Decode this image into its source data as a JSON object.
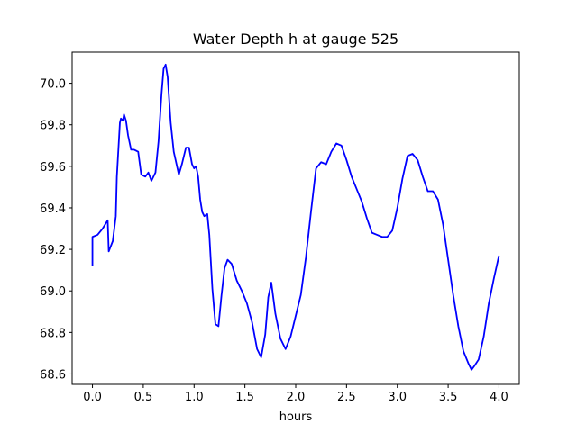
{
  "chart_data": {
    "type": "line",
    "title": "Water Depth h at gauge 525",
    "xlabel": "hours",
    "ylabel": "",
    "xlim": [
      -0.2,
      4.2
    ],
    "ylim": [
      68.55,
      70.15
    ],
    "xticks": [
      0.0,
      0.5,
      1.0,
      1.5,
      2.0,
      2.5,
      3.0,
      3.5,
      4.0
    ],
    "xtick_labels": [
      "0.0",
      "0.5",
      "1.0",
      "1.5",
      "2.0",
      "2.5",
      "3.0",
      "3.5",
      "4.0"
    ],
    "yticks": [
      68.6,
      68.8,
      69.0,
      69.2,
      69.4,
      69.6,
      69.8,
      70.0
    ],
    "ytick_labels": [
      "68.6",
      "68.8",
      "69.0",
      "69.2",
      "69.4",
      "69.6",
      "69.8",
      "70.0"
    ],
    "grid": false,
    "series": [
      {
        "color": "#0000ff",
        "x": [
          0.0,
          0.0,
          0.05,
          0.1,
          0.15,
          0.16,
          0.2,
          0.23,
          0.24,
          0.27,
          0.28,
          0.3,
          0.31,
          0.33,
          0.35,
          0.38,
          0.41,
          0.45,
          0.48,
          0.52,
          0.55,
          0.58,
          0.62,
          0.65,
          0.68,
          0.7,
          0.72,
          0.74,
          0.77,
          0.8,
          0.85,
          0.88,
          0.92,
          0.95,
          0.98,
          1.0,
          1.02,
          1.04,
          1.06,
          1.08,
          1.1,
          1.13,
          1.15,
          1.18,
          1.21,
          1.24,
          1.27,
          1.3,
          1.33,
          1.37,
          1.42,
          1.47,
          1.52,
          1.57,
          1.62,
          1.66,
          1.7,
          1.73,
          1.76,
          1.8,
          1.85,
          1.9,
          1.95,
          2.0,
          2.05,
          2.1,
          2.15,
          2.2,
          2.25,
          2.3,
          2.35,
          2.4,
          2.45,
          2.5,
          2.55,
          2.6,
          2.65,
          2.7,
          2.75,
          2.8,
          2.85,
          2.9,
          2.95,
          3.0,
          3.05,
          3.1,
          3.15,
          3.2,
          3.25,
          3.3,
          3.35,
          3.4,
          3.45,
          3.5,
          3.55,
          3.6,
          3.65,
          3.7,
          3.73,
          3.76,
          3.8,
          3.85,
          3.9,
          3.95,
          4.0
        ],
        "y": [
          69.12,
          69.26,
          69.27,
          69.3,
          69.34,
          69.19,
          69.24,
          69.36,
          69.55,
          69.81,
          69.83,
          69.82,
          69.85,
          69.82,
          69.75,
          69.68,
          69.68,
          69.67,
          69.56,
          69.55,
          69.57,
          69.53,
          69.57,
          69.72,
          69.95,
          70.07,
          70.09,
          70.03,
          69.81,
          69.67,
          69.56,
          69.61,
          69.69,
          69.69,
          69.61,
          69.59,
          69.6,
          69.55,
          69.44,
          69.38,
          69.36,
          69.37,
          69.27,
          69.01,
          68.84,
          68.83,
          68.98,
          69.11,
          69.15,
          69.13,
          69.05,
          69.0,
          68.94,
          68.85,
          68.72,
          68.68,
          68.79,
          68.97,
          69.04,
          68.89,
          68.77,
          68.72,
          68.78,
          68.88,
          68.98,
          69.16,
          69.38,
          69.59,
          69.62,
          69.61,
          69.67,
          69.71,
          69.7,
          69.63,
          69.55,
          69.49,
          69.43,
          69.35,
          69.28,
          69.27,
          69.26,
          69.26,
          69.29,
          69.4,
          69.54,
          69.65,
          69.66,
          69.63,
          69.55,
          69.48,
          69.48,
          69.44,
          69.32,
          69.15,
          68.98,
          68.83,
          68.71,
          68.65,
          68.62,
          68.64,
          68.67,
          68.78,
          68.94,
          69.06,
          69.17
        ]
      }
    ]
  }
}
